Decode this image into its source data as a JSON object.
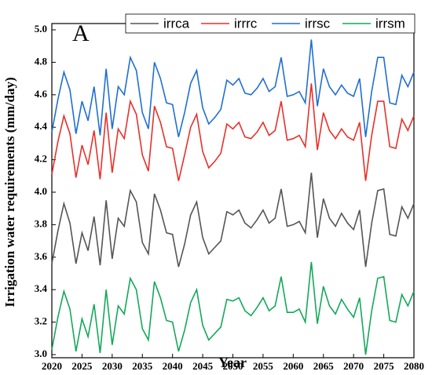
{
  "chart_data": {
    "type": "line",
    "annotation": "A",
    "xlabel": "Year",
    "ylabel": "Irrigation water requirements (mm/day)",
    "x": [
      2020,
      2021,
      2022,
      2023,
      2024,
      2025,
      2026,
      2027,
      2028,
      2029,
      2030,
      2031,
      2032,
      2033,
      2034,
      2035,
      2036,
      2037,
      2038,
      2039,
      2040,
      2041,
      2042,
      2043,
      2044,
      2045,
      2046,
      2047,
      2048,
      2049,
      2050,
      2051,
      2052,
      2053,
      2054,
      2055,
      2056,
      2057,
      2058,
      2059,
      2060,
      2061,
      2062,
      2063,
      2064,
      2065,
      2066,
      2067,
      2068,
      2069,
      2070,
      2071,
      2072,
      2073,
      2074,
      2075,
      2076,
      2077,
      2078,
      2079,
      2080
    ],
    "xlim": [
      2020,
      2080
    ],
    "xticks": [
      2020,
      2025,
      2030,
      2035,
      2040,
      2045,
      2050,
      2055,
      2060,
      2065,
      2070,
      2075,
      2080
    ],
    "ylim": [
      3.0,
      5.0
    ],
    "yticks": [
      {
        "value": 3.0,
        "label": "3.0"
      },
      3.2,
      3.4,
      3.6,
      3.8,
      {
        "value": 4.0,
        "label": "4.0"
      },
      4.2,
      4.4,
      4.6,
      4.8,
      {
        "value": 5.0,
        "label": "5.0"
      }
    ],
    "legend": "top-right",
    "series": [
      {
        "name": "irrca",
        "color": "#555555",
        "values": [
          3.56,
          3.76,
          3.93,
          3.81,
          3.56,
          3.75,
          3.64,
          3.85,
          3.55,
          3.95,
          3.59,
          3.84,
          3.79,
          4.01,
          3.94,
          3.69,
          3.62,
          3.99,
          3.89,
          3.75,
          3.74,
          3.54,
          3.68,
          3.86,
          3.94,
          3.72,
          3.62,
          3.66,
          3.7,
          3.88,
          3.86,
          3.89,
          3.81,
          3.78,
          3.83,
          3.89,
          3.81,
          3.84,
          4.02,
          3.79,
          3.8,
          3.82,
          3.75,
          4.12,
          3.72,
          3.96,
          3.84,
          3.79,
          3.87,
          3.81,
          3.77,
          3.89,
          3.54,
          3.81,
          4.01,
          4.02,
          3.74,
          3.73,
          3.91,
          3.84,
          3.93
        ]
      },
      {
        "name": "irrrc",
        "color": "#e8302a",
        "values": [
          4.11,
          4.31,
          4.47,
          4.36,
          4.09,
          4.29,
          4.17,
          4.38,
          4.08,
          4.49,
          4.12,
          4.39,
          4.33,
          4.56,
          4.48,
          4.23,
          4.13,
          4.53,
          4.43,
          4.28,
          4.27,
          4.07,
          4.23,
          4.4,
          4.48,
          4.25,
          4.15,
          4.19,
          4.24,
          4.42,
          4.39,
          4.43,
          4.34,
          4.33,
          4.37,
          4.43,
          4.35,
          4.38,
          4.56,
          4.32,
          4.33,
          4.35,
          4.28,
          4.67,
          4.26,
          4.49,
          4.38,
          4.33,
          4.39,
          4.34,
          4.32,
          4.43,
          4.07,
          4.35,
          4.56,
          4.56,
          4.28,
          4.27,
          4.45,
          4.38,
          4.47
        ]
      },
      {
        "name": "irrsc",
        "color": "#1f6fd1",
        "values": [
          4.37,
          4.57,
          4.74,
          4.63,
          4.36,
          4.56,
          4.44,
          4.65,
          4.35,
          4.76,
          4.39,
          4.65,
          4.6,
          4.83,
          4.75,
          4.49,
          4.39,
          4.8,
          4.7,
          4.55,
          4.54,
          4.34,
          4.49,
          4.67,
          4.75,
          4.52,
          4.42,
          4.46,
          4.51,
          4.69,
          4.66,
          4.7,
          4.61,
          4.6,
          4.64,
          4.7,
          4.62,
          4.65,
          4.83,
          4.59,
          4.6,
          4.62,
          4.55,
          4.94,
          4.53,
          4.76,
          4.65,
          4.6,
          4.66,
          4.61,
          4.59,
          4.7,
          4.34,
          4.62,
          4.83,
          4.83,
          4.55,
          4.54,
          4.72,
          4.65,
          4.74
        ]
      },
      {
        "name": "irrsm",
        "color": "#14a85a",
        "values": [
          3.03,
          3.23,
          3.39,
          3.28,
          3.02,
          3.22,
          3.11,
          3.31,
          3.01,
          3.4,
          3.06,
          3.3,
          3.25,
          3.47,
          3.4,
          3.16,
          3.09,
          3.45,
          3.35,
          3.21,
          3.2,
          3.02,
          3.15,
          3.32,
          3.4,
          3.18,
          3.09,
          3.13,
          3.17,
          3.34,
          3.33,
          3.35,
          3.27,
          3.24,
          3.29,
          3.35,
          3.27,
          3.3,
          3.48,
          3.26,
          3.26,
          3.28,
          3.2,
          3.57,
          3.19,
          3.42,
          3.3,
          3.25,
          3.34,
          3.28,
          3.23,
          3.35,
          3.0,
          3.27,
          3.47,
          3.48,
          3.21,
          3.2,
          3.37,
          3.3,
          3.39
        ]
      }
    ]
  }
}
